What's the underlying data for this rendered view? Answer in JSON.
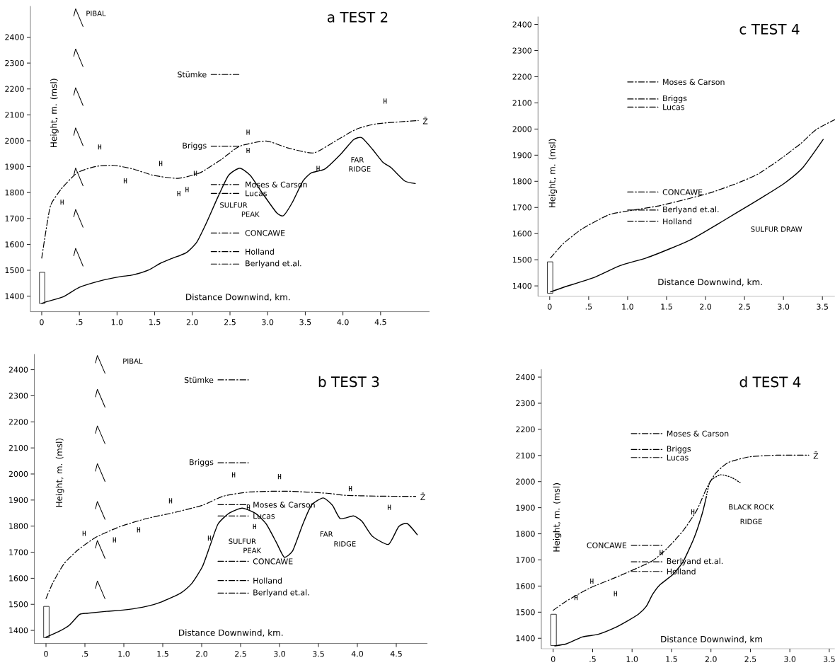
{
  "chart_data": [
    {
      "type": "line",
      "title": "a TEST 2",
      "xlabel": "Distance Downwind, km.",
      "ylabel": "Height, m. (msl)",
      "xlim": [
        -0.15,
        5.15
      ],
      "ylim": [
        1340,
        2520
      ],
      "xticks": [
        0,
        {
          "value": 0.5,
          "label": ".5"
        },
        {
          "value": 1,
          "label": "1.0"
        },
        {
          "value": 1.5,
          "label": "1.5"
        },
        {
          "value": 2,
          "label": "2.0"
        },
        {
          "value": 2.5,
          "label": "2.5"
        },
        {
          "value": 3,
          "label": "3.0"
        },
        {
          "value": 3.5,
          "label": "3.5"
        },
        {
          "value": 4,
          "label": "4.0"
        },
        {
          "value": 4.5,
          "label": "4.5"
        }
      ],
      "yticks": [
        1400,
        1500,
        1600,
        1700,
        1800,
        1900,
        2000,
        2100,
        2200,
        2300,
        2400
      ],
      "series": [
        {
          "line_style": "solid",
          "x": [
            0,
            0.08,
            0.29,
            0.5,
            0.79,
            1.04,
            1.21,
            1.42,
            1.57,
            1.74,
            1.92,
            2.06,
            2.2,
            2.34,
            2.48,
            2.63,
            2.77,
            2.94,
            3.12,
            3.21,
            3.33,
            3.47,
            3.58,
            3.76,
            3.97,
            4.14,
            4.25,
            4.39,
            4.53,
            4.64,
            4.82,
            4.96
          ],
          "values": [
            1372,
            1380,
            1398,
            1434,
            1460,
            1475,
            1482,
            1501,
            1526,
            1547,
            1568,
            1609,
            1691,
            1783,
            1866,
            1894,
            1866,
            1794,
            1722,
            1711,
            1763,
            1845,
            1876,
            1891,
            1948,
            2004,
            2012,
            1968,
            1917,
            1896,
            1845,
            1835
          ]
        },
        {
          "line_style": "dashed",
          "x": [
            0,
            0.06,
            0.12,
            0.26,
            0.47,
            0.72,
            0.96,
            1.21,
            1.49,
            1.81,
            2.1,
            2.38,
            2.63,
            2.98,
            3.26,
            3.61,
            3.9,
            4.18,
            4.46,
            5.0
          ],
          "values": [
            1547,
            1660,
            1752,
            1814,
            1876,
            1901,
            1905,
            1891,
            1866,
            1855,
            1876,
            1927,
            1979,
            1999,
            1973,
            1953,
            1999,
            2045,
            2066,
            2078
          ]
        },
        {
          "line_style": "dashed",
          "x": [
            2.25,
            2.64
          ],
          "values": [
            2256,
            2256
          ]
        },
        {
          "line_style": "dashed",
          "x": [
            2.25,
            2.64
          ],
          "values": [
            1979,
            1979
          ]
        },
        {
          "line_style": "dashed",
          "x": [
            2.25,
            2.64
          ],
          "values": [
            1831,
            1831
          ]
        },
        {
          "line_style": "dashed",
          "x": [
            2.25,
            2.64
          ],
          "values": [
            1797,
            1797
          ]
        },
        {
          "line_style": "dashed",
          "x": [
            2.25,
            2.64
          ],
          "values": [
            1644,
            1644
          ]
        },
        {
          "line_style": "dashed",
          "x": [
            2.25,
            2.64
          ],
          "values": [
            1572,
            1572
          ]
        },
        {
          "line_style": "dashed",
          "x": [
            2.25,
            2.64
          ],
          "values": [
            1524,
            1524
          ]
        },
        {
          "type": "scatter",
          "x": [
            0.27,
            0.77,
            1.11,
            1.58,
            1.82,
            1.93,
            2.04,
            2.74,
            2.74,
            3.67,
            4.56
          ],
          "values": [
            1763,
            1976,
            1845,
            1912,
            1796,
            1812,
            1874,
            2033,
            1963,
            1893,
            2153
          ]
        }
      ],
      "annotations": [
        {
          "text": "Stümke",
          "x": 2.25,
          "y": 2256
        },
        {
          "text": "Briggs",
          "x": 2.25,
          "y": 1979
        },
        {
          "text": "Moses & Carson",
          "x": 2.64,
          "y": 1831
        },
        {
          "text": "Lucas",
          "x": 2.64,
          "y": 1797
        },
        {
          "text": "CONCAWE",
          "x": 2.64,
          "y": 1644
        },
        {
          "text": "Holland",
          "x": 2.64,
          "y": 1572
        },
        {
          "text": "Berlyand et.al.",
          "x": 2.64,
          "y": 1524
        },
        {
          "text": "Z̄",
          "x": 5.0,
          "y": 2078
        },
        "PIBAL",
        "SULFUR",
        "PEAK",
        "FAR",
        "RIDGE"
      ]
    },
    {
      "type": "line",
      "title": "c TEST 4",
      "xlabel": "Distance Downwind, km.",
      "ylabel": "Height, m. (msl)",
      "xlim": [
        -0.15,
        3.66
      ],
      "ylim": [
        1360,
        2430
      ],
      "xticks": [
        0,
        {
          "value": 0.5,
          "label": ".5"
        },
        {
          "value": 1,
          "label": "1.0"
        },
        {
          "value": 1.5,
          "label": "1.5"
        },
        {
          "value": 2,
          "label": "2.0"
        },
        {
          "value": 2.5,
          "label": "2.5"
        },
        {
          "value": 3,
          "label": "3.0"
        },
        {
          "value": 3.5,
          "label": "3.5"
        }
      ],
      "yticks": [
        1400,
        1500,
        1600,
        1700,
        1800,
        1900,
        2000,
        2100,
        2200,
        2300,
        2400
      ],
      "series": [
        {
          "line_style": "solid",
          "x": [
            0.01,
            0.18,
            0.56,
            0.9,
            1.24,
            1.55,
            1.82,
            2.06,
            2.4,
            2.74,
            3.01,
            3.25,
            3.51
          ],
          "values": [
            1377,
            1395,
            1431,
            1477,
            1507,
            1543,
            1578,
            1619,
            1680,
            1741,
            1792,
            1853,
            1960
          ]
        },
        {
          "line_style": "dashed",
          "x": [
            0.01,
            0.18,
            0.42,
            0.76,
            1.03,
            1.38,
            1.72,
            2.06,
            2.4,
            2.67,
            2.95,
            3.22,
            3.42,
            3.66
          ],
          "values": [
            1507,
            1563,
            1619,
            1672,
            1688,
            1705,
            1729,
            1756,
            1792,
            1827,
            1883,
            1944,
            1998,
            2036
          ]
        },
        {
          "line_style": "dashed",
          "x": [
            1.0,
            1.39
          ],
          "values": [
            2180,
            2180
          ]
        },
        {
          "line_style": "dashed",
          "x": [
            1.0,
            1.39
          ],
          "values": [
            2115,
            2115
          ]
        },
        {
          "line_style": "dashed",
          "x": [
            1.0,
            1.39
          ],
          "values": [
            2084,
            2084
          ]
        },
        {
          "line_style": "dashed",
          "x": [
            1.0,
            1.39
          ],
          "values": [
            1759,
            1759
          ]
        },
        {
          "line_style": "dashed",
          "x": [
            1.0,
            1.39
          ],
          "values": [
            1690,
            1690
          ]
        },
        {
          "line_style": "dashed",
          "x": [
            1.0,
            1.39
          ],
          "values": [
            1647,
            1647
          ]
        }
      ],
      "annotations": [
        {
          "text": "Moses & Carson",
          "x": 1.39,
          "y": 2180
        },
        {
          "text": "Briggs",
          "x": 1.39,
          "y": 2115
        },
        {
          "text": "Lucas",
          "x": 1.39,
          "y": 2084
        },
        {
          "text": "CONCAWE",
          "x": 1.39,
          "y": 1759
        },
        {
          "text": "Berlyand et.al.",
          "x": 1.39,
          "y": 1690
        },
        {
          "text": "Holland",
          "x": 1.39,
          "y": 1647
        },
        "SULFUR DRAW"
      ]
    },
    {
      "type": "line",
      "title": "b TEST 3",
      "xlabel": "Distance Downwind, km.",
      "ylabel": "Height, m. (msl)",
      "xlim": [
        -0.15,
        4.9
      ],
      "ylim": [
        1350,
        2460
      ],
      "xticks": [
        0,
        {
          "value": 0.5,
          "label": ".5"
        },
        {
          "value": 1,
          "label": "1.0"
        },
        {
          "value": 1.5,
          "label": "1.5"
        },
        {
          "value": 2,
          "label": "2.0"
        },
        {
          "value": 2.5,
          "label": "2.5"
        },
        {
          "value": 3,
          "label": "3.0"
        },
        {
          "value": 3.5,
          "label": "3.5"
        },
        {
          "value": 4,
          "label": "4.0"
        },
        {
          "value": 4.5,
          "label": "4.5"
        }
      ],
      "yticks": [
        1400,
        1500,
        1600,
        1700,
        1800,
        1900,
        2000,
        2100,
        2200,
        2300,
        2400
      ],
      "series": [
        {
          "line_style": "solid",
          "x": [
            0,
            0.16,
            0.3,
            0.43,
            0.54,
            0.78,
            1.05,
            1.29,
            1.49,
            1.73,
            1.87,
            2.01,
            2.11,
            2.21,
            2.35,
            2.52,
            2.69,
            2.83,
            2.96,
            3.06,
            3.17,
            3.3,
            3.41,
            3.56,
            3.68,
            3.78,
            3.95,
            4.06,
            4.19,
            4.4,
            4.53,
            4.64,
            4.77
          ],
          "values": [
            1374,
            1395,
            1420,
            1461,
            1466,
            1473,
            1480,
            1492,
            1510,
            1543,
            1579,
            1645,
            1727,
            1808,
            1849,
            1869,
            1849,
            1808,
            1737,
            1681,
            1706,
            1808,
            1880,
            1908,
            1880,
            1829,
            1839,
            1818,
            1762,
            1730,
            1798,
            1810,
            1767
          ]
        },
        {
          "line_style": "dashed",
          "x": [
            0,
            0.09,
            0.23,
            0.4,
            0.64,
            0.95,
            1.29,
            1.63,
            2.01,
            2.28,
            2.62,
            3.1,
            3.61,
            3.85,
            4.26,
            4.75
          ],
          "values": [
            1522,
            1584,
            1655,
            1706,
            1757,
            1798,
            1829,
            1851,
            1880,
            1915,
            1931,
            1934,
            1926,
            1918,
            1915,
            1914
          ]
        },
        {
          "line_style": "dashed",
          "x": [
            2.21,
            2.6
          ],
          "values": [
            2361,
            2361
          ]
        },
        {
          "line_style": "dashed",
          "x": [
            2.21,
            2.6
          ],
          "values": [
            2043,
            2043
          ]
        },
        {
          "line_style": "dashed",
          "x": [
            2.21,
            2.6
          ],
          "values": [
            1882,
            1882
          ]
        },
        {
          "line_style": "dashed",
          "x": [
            2.21,
            2.6
          ],
          "values": [
            1839,
            1839
          ]
        },
        {
          "line_style": "dashed",
          "x": [
            2.21,
            2.6
          ],
          "values": [
            1665,
            1665
          ]
        },
        {
          "line_style": "dashed",
          "x": [
            2.21,
            2.6
          ],
          "values": [
            1591,
            1591
          ]
        },
        {
          "line_style": "dashed",
          "x": [
            2.21,
            2.6
          ],
          "values": [
            1543,
            1543
          ]
        },
        {
          "type": "scatter",
          "x": [
            0.49,
            0.88,
            1.19,
            1.6,
            2.1,
            2.41,
            2.6,
            2.68,
            3.0,
            3.91,
            4.41
          ],
          "values": [
            1772,
            1747,
            1786,
            1897,
            1754,
            1997,
            1872,
            1798,
            1990,
            1944,
            1872
          ]
        }
      ],
      "annotations": [
        {
          "text": "Stümke",
          "x": 2.21,
          "y": 2361
        },
        {
          "text": "Briggs",
          "x": 2.21,
          "y": 2043
        },
        {
          "text": "Moses & Carson",
          "x": 2.6,
          "y": 1882
        },
        {
          "text": "Lucas",
          "x": 2.6,
          "y": 1839
        },
        {
          "text": "CONCAWE",
          "x": 2.6,
          "y": 1665
        },
        {
          "text": "Holland",
          "x": 2.6,
          "y": 1591
        },
        {
          "text": "Berlyand et.al.",
          "x": 2.6,
          "y": 1543
        },
        {
          "text": "Z̄",
          "x": 4.75,
          "y": 1914
        },
        "PIBAL",
        "SULFUR",
        "PEAK",
        "FAR",
        "RIDGE"
      ]
    },
    {
      "type": "line",
      "title": "d TEST 4",
      "xlabel": "Distance Downwind, km",
      "ylabel": "Height, m. (msl)",
      "xlim": [
        -0.15,
        3.57
      ],
      "ylim": [
        1360,
        2430
      ],
      "xticks": [
        0,
        {
          "value": 0.5,
          "label": ".5"
        },
        {
          "value": 1,
          "label": "1.0"
        },
        {
          "value": 1.5,
          "label": "1.5"
        },
        {
          "value": 2,
          "label": "2.0"
        },
        {
          "value": 2.5,
          "label": "2.5"
        },
        {
          "value": 3,
          "label": "3.0"
        },
        {
          "value": 3.5,
          "label": "3.5"
        }
      ],
      "yticks": [
        1400,
        1500,
        1600,
        1700,
        1800,
        1900,
        2000,
        2100,
        2200,
        2300,
        2400
      ],
      "series": [
        {
          "line_style": "solid",
          "x": [
            0.02,
            0.17,
            0.37,
            0.57,
            0.78,
            0.94,
            1.08,
            1.18,
            1.26,
            1.35,
            1.52,
            1.65,
            1.79,
            1.89,
            1.94
          ],
          "values": [
            1371,
            1379,
            1405,
            1415,
            1440,
            1466,
            1492,
            1522,
            1568,
            1604,
            1645,
            1695,
            1787,
            1878,
            1940
          ]
        },
        {
          "line_style": "dotted",
          "x": [
            1.94,
            1.99,
            2.12,
            2.26,
            2.37
          ],
          "values": [
            1940,
            2001,
            2026,
            2016,
            1996
          ]
        },
        {
          "line_style": "dashed",
          "x": [
            0,
            0.17,
            0.47,
            0.84,
            1.25,
            1.45,
            1.65,
            1.82,
            1.94,
            2.06,
            2.22,
            2.49,
            2.83,
            3.24
          ],
          "values": [
            1507,
            1543,
            1593,
            1639,
            1695,
            1746,
            1813,
            1890,
            1971,
            2032,
            2073,
            2095,
            2101,
            2101
          ]
        },
        {
          "line_style": "dashed",
          "x": [
            0.99,
            1.38
          ],
          "values": [
            2184,
            2184
          ]
        },
        {
          "line_style": "dashed",
          "x": [
            0.99,
            1.38
          ],
          "values": [
            2123,
            2123
          ]
        },
        {
          "line_style": "dashed",
          "x": [
            0.99,
            1.38
          ],
          "values": [
            2092,
            2092
          ]
        },
        {
          "line_style": "dashed",
          "x": [
            0.99,
            1.38
          ],
          "values": [
            1756,
            1756
          ]
        },
        {
          "line_style": "dashed",
          "x": [
            0.99,
            1.38
          ],
          "values": [
            1693,
            1693
          ]
        },
        {
          "line_style": "dashed",
          "x": [
            0.99,
            1.38
          ],
          "values": [
            1656,
            1656
          ]
        },
        {
          "type": "scatter",
          "x": [
            0.29,
            0.49,
            0.79,
            1.37,
            1.77
          ],
          "values": [
            1556,
            1619,
            1571,
            1728,
            1884
          ]
        }
      ],
      "annotations": [
        {
          "text": "Moses & Carson",
          "x": 1.38,
          "y": 2184
        },
        {
          "text": "Briggs",
          "x": 1.38,
          "y": 2123
        },
        {
          "text": "Lucas",
          "x": 1.38,
          "y": 2092
        },
        {
          "text": "CONCAWE",
          "x": 0.99,
          "y": 1756
        },
        {
          "text": "Berlyand et.al.",
          "x": 1.38,
          "y": 1693
        },
        {
          "text": "Holland",
          "x": 1.38,
          "y": 1656
        },
        {
          "text": "Z̄",
          "x": 3.24,
          "y": 2101
        },
        "BLACK ROCK",
        "RIDGE"
      ]
    }
  ]
}
